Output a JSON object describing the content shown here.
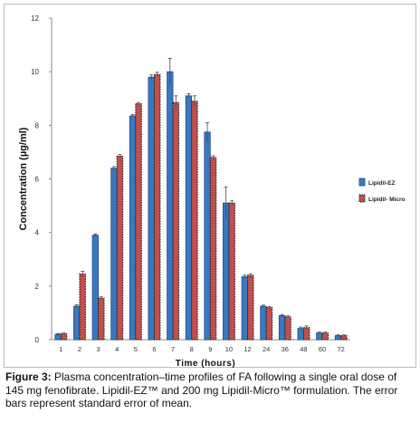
{
  "chart_data": {
    "type": "bar",
    "xlabel": "Time (hours)",
    "ylabel": "Concentration (µg/ml)",
    "ylim": [
      0,
      12
    ],
    "yticks": [
      "0",
      "2",
      "4",
      "6",
      "8",
      "10",
      "12"
    ],
    "categories": [
      "1",
      "2",
      "3",
      "4",
      "5",
      "6",
      "7",
      "8",
      "9",
      "10",
      "12",
      "24",
      "36",
      "48",
      "60",
      "72"
    ],
    "legend_position": "right",
    "series": [
      {
        "name": "Lipidil-EZ",
        "color": "#3a78c0",
        "values": [
          0.2,
          1.25,
          3.9,
          6.4,
          8.35,
          9.8,
          10.0,
          9.1,
          7.75,
          5.1,
          2.35,
          1.25,
          0.9,
          0.42,
          0.25,
          0.15
        ],
        "errors": [
          0.03,
          0.05,
          0.05,
          0.06,
          0.05,
          0.08,
          0.5,
          0.08,
          0.35,
          0.6,
          0.06,
          0.04,
          0.04,
          0.05,
          0.03,
          0.03
        ]
      },
      {
        "name": "Lipidil- Micro",
        "color": "#c0504d",
        "values": [
          0.22,
          2.45,
          1.55,
          6.85,
          8.8,
          9.9,
          8.85,
          8.9,
          6.8,
          5.1,
          2.4,
          1.2,
          0.85,
          0.45,
          0.25,
          0.15
        ],
        "errors": [
          0.03,
          0.1,
          0.05,
          0.06,
          0.05,
          0.08,
          0.25,
          0.2,
          0.06,
          0.08,
          0.06,
          0.04,
          0.04,
          0.06,
          0.03,
          0.03
        ]
      }
    ]
  },
  "caption": {
    "label": "Figure 3:",
    "text": " Plasma concentration–time profiles of FA following a single oral dose of 145 mg fenofibrate. Lipidil-EZ™ and 200 mg  Lipidil-Micro™ formulation. The error bars represent standard error of mean."
  }
}
